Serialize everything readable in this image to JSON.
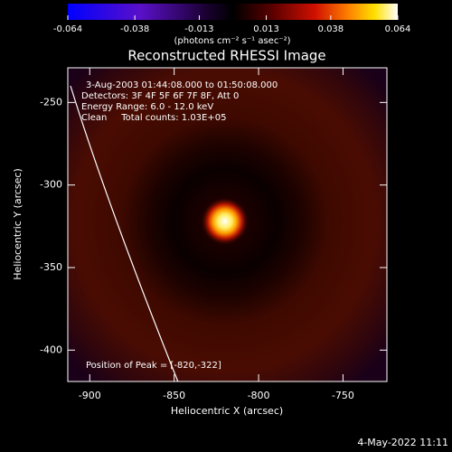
{
  "chart_data": {
    "type": "image",
    "title": "Reconstructed RHESSI Image",
    "xlabel": "Heliocentric X (arcsec)",
    "ylabel": "Heliocentric Y (arcsec)",
    "xlim": [
      -913,
      -724
    ],
    "ylim": [
      -419,
      -229
    ],
    "xticks": [
      -900,
      -850,
      -800,
      -750
    ],
    "yticks": [
      -250,
      -300,
      -350,
      -400
    ],
    "colorbar": {
      "label": "(photons cm⁻² s⁻¹ asec⁻²)",
      "clim": [
        -0.064,
        0.064
      ],
      "ticks": [
        -0.064,
        -0.038,
        -0.013,
        0.013,
        0.038,
        0.064
      ]
    },
    "peak": {
      "x": -820,
      "y": -322
    },
    "annotations": [
      "3-Aug-2003 01:44:08.000 to 01:50:08.000",
      "Detectors: 3F 4F 5F 6F 7F 8F, Att 0",
      "Energy Range: 6.0 - 12.0 keV",
      "Clean     Total counts: 1.03E+05"
    ],
    "peak_label": "Position of Peak = [-820,-322]",
    "timestamp": "4-May-2022 11:11"
  }
}
